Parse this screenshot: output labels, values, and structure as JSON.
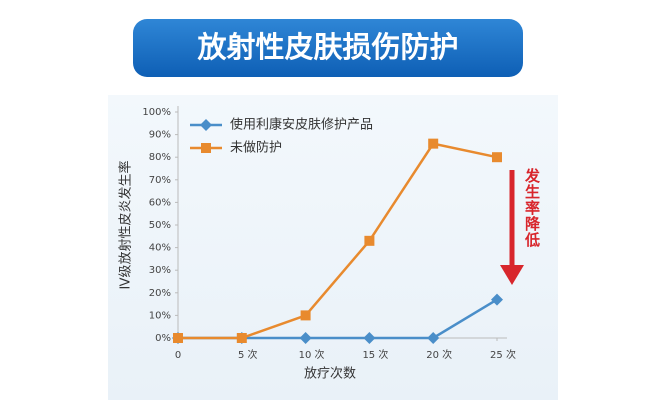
{
  "chart_data": {
    "type": "line",
    "title": "放射性皮肤损伤防护",
    "x_label": "放疗次数",
    "y_label": "Ⅳ级放射性皮炎发生率",
    "annotation": "发生率降低",
    "x": [
      0,
      5,
      10,
      15,
      20,
      25
    ],
    "xlim": [
      0,
      25
    ],
    "xticks": [
      0,
      {
        "value": 5,
        "label": "5 次"
      },
      {
        "value": 10,
        "label": "10 次"
      },
      {
        "value": 15,
        "label": "15 次"
      },
      {
        "value": 20,
        "label": "20 次"
      },
      {
        "value": 25,
        "label": "25 次"
      }
    ],
    "ylim": [
      0,
      100
    ],
    "yticks": [
      {
        "value": 0,
        "label": "0%"
      },
      {
        "value": 10,
        "label": "10%"
      },
      {
        "value": 20,
        "label": "20%"
      },
      {
        "value": 30,
        "label": "30%"
      },
      {
        "value": 40,
        "label": "40%"
      },
      {
        "value": 50,
        "label": "50%"
      },
      {
        "value": 60,
        "label": "60%"
      },
      {
        "value": 70,
        "label": "70%"
      },
      {
        "value": 80,
        "label": "80%"
      },
      {
        "value": 90,
        "label": "90%"
      },
      {
        "value": 100,
        "label": "100%"
      }
    ],
    "series": [
      {
        "name": "使用利康安皮肤修护产品",
        "color": "#4a8ec9",
        "marker": "diamond",
        "values": [
          0,
          0,
          0,
          0,
          0,
          17
        ]
      },
      {
        "name": "未做防护",
        "color": "#e88a2e",
        "marker": "square",
        "values": [
          0,
          0,
          10,
          43,
          86,
          80
        ]
      }
    ]
  }
}
